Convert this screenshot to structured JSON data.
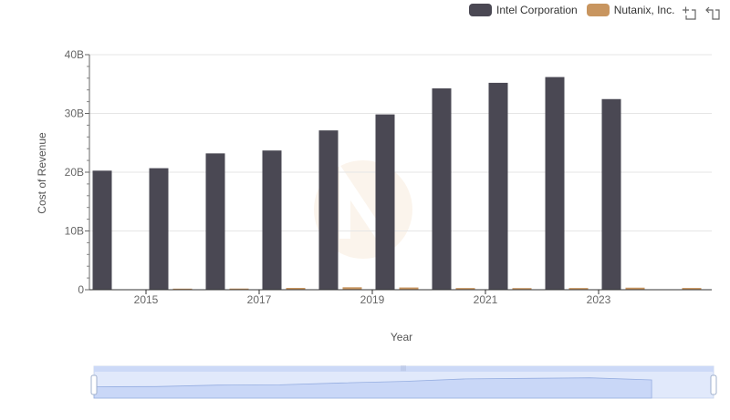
{
  "legend": {
    "items": [
      {
        "name": "Intel Corporation",
        "color": "#4a4853"
      },
      {
        "name": "Nutanix, Inc.",
        "color": "#c8955f"
      }
    ]
  },
  "toolbox": {
    "zoom_icon": "data-zoom-icon",
    "restore_icon": "restore-icon"
  },
  "chart_data": {
    "type": "bar",
    "title": "",
    "xlabel": "Year",
    "ylabel": "Cost of Revenue",
    "ylim": [
      0,
      40
    ],
    "y_ticks": [
      0,
      10,
      20,
      30,
      40
    ],
    "y_tick_labels": [
      "0",
      "10B",
      "20B",
      "30B",
      "40B"
    ],
    "categories": [
      "2014",
      "2015",
      "2016",
      "2017",
      "2018",
      "2019",
      "2020",
      "2021",
      "2022",
      "2023",
      "2024"
    ],
    "x_tick_labels": [
      "2015",
      "2017",
      "2019",
      "2021",
      "2023"
    ],
    "series": [
      {
        "name": "Intel Corporation",
        "color": "#4a4853",
        "values": [
          20.26,
          20.68,
          23.2,
          23.69,
          27.11,
          29.83,
          34.26,
          35.21,
          36.19,
          32.44,
          null
        ]
      },
      {
        "name": "Nutanix, Inc.",
        "color": "#c8955f",
        "values": [
          null,
          0.12,
          0.2,
          0.31,
          0.42,
          0.38,
          0.29,
          0.28,
          0.29,
          0.35,
          0.3
        ]
      }
    ],
    "grid": true,
    "legend_position": "top-right"
  }
}
